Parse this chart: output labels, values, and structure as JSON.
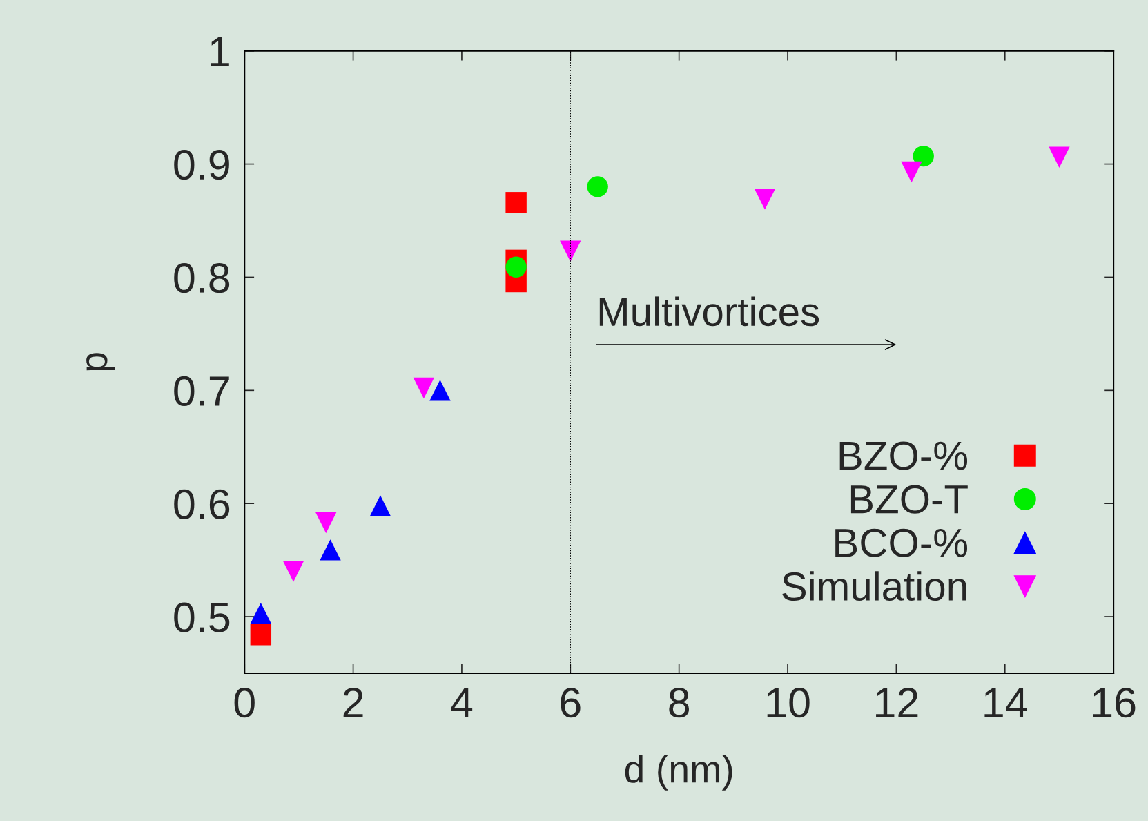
{
  "chart_data": {
    "type": "scatter",
    "xlabel": "d (nm)",
    "ylabel": "p",
    "xlim": [
      0,
      16
    ],
    "ylim": [
      0.45,
      1
    ],
    "xticks": [
      0,
      2,
      4,
      6,
      8,
      10,
      12,
      14,
      16
    ],
    "yticks": [
      0.5,
      0.6,
      0.7,
      0.8,
      0.9,
      1
    ],
    "grid": false,
    "legend": "bottom right",
    "series": [
      {
        "name": "BZO-%",
        "color": "#ff0000",
        "marker": "square",
        "x": [
          0.3,
          5.0,
          5.0,
          5.0
        ],
        "values": [
          0.484,
          0.866,
          0.815,
          0.796
        ]
      },
      {
        "name": "BZO-T",
        "color": "#00ee00",
        "marker": "circle",
        "x": [
          5.0,
          6.5,
          12.5
        ],
        "values": [
          0.809,
          0.88,
          0.907
        ]
      },
      {
        "name": "BCO-%",
        "color": "#0000ff",
        "marker": "triangle",
        "x": [
          0.3,
          1.58,
          2.5,
          3.6
        ],
        "values": [
          0.503,
          0.559,
          0.598,
          0.7
        ]
      },
      {
        "name": "Simulation",
        "color": "#ff00ff",
        "marker": "triangle_down",
        "x": [
          0.9,
          1.5,
          3.3,
          6.0,
          9.58,
          12.28,
          15.0
        ],
        "values": [
          0.54,
          0.583,
          0.702,
          0.823,
          0.869,
          0.893,
          0.906
        ]
      }
    ],
    "ref_lines": [
      {
        "axis": "x",
        "value": 6,
        "line_style": "dotted",
        "color": "#000000"
      }
    ],
    "annotations": [
      "Multivortices"
    ]
  }
}
